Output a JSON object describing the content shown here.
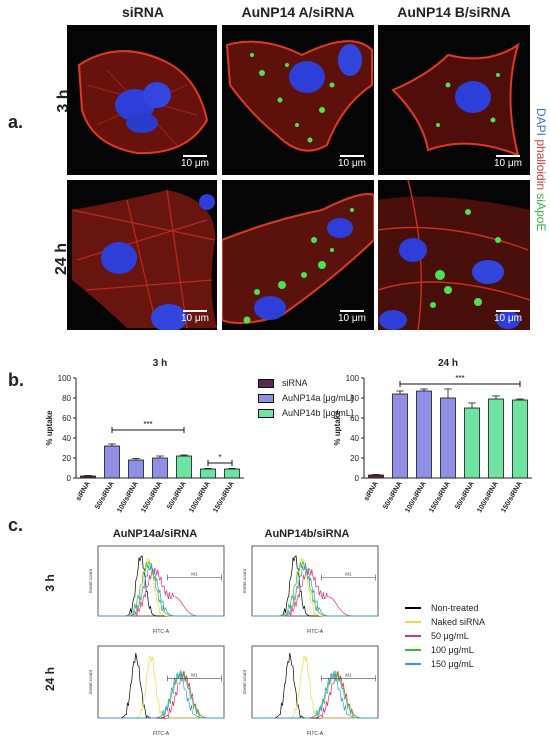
{
  "panel_a": {
    "letter": "a.",
    "column_titles": [
      "siRNA",
      "AuNP14 A/siRNA",
      "AuNP14 B/siRNA"
    ],
    "row_labels": [
      "3 h",
      "24 h"
    ],
    "scale_bar": "10 μm",
    "stain_legend": [
      {
        "text": "DAPI",
        "color": "#3a6fd6"
      },
      {
        "text": " phalloidin",
        "color": "#d53a2a"
      },
      {
        "text": " siApoE",
        "color": "#3cb23c"
      }
    ]
  },
  "panel_b": {
    "letter": "b.",
    "legend": [
      {
        "text": "siRNA",
        "color": "#5b2a4a"
      },
      {
        "text": "AuNP14a [μg/mL]",
        "color": "#8f8fe6"
      },
      {
        "text": "AuNP14b [μg/mL]",
        "color": "#6fe3a0"
      }
    ]
  },
  "panel_c": {
    "letter": "c.",
    "column_titles": [
      "AuNP14a/siRNA",
      "AuNP14b/siRNA"
    ],
    "row_labels": [
      "3 h",
      "24 h"
    ],
    "x_axis_label": "FITC-A",
    "y_axis_label": "Event count",
    "gate_label": "M1",
    "legend": [
      {
        "text": "Non-treated",
        "color": "#000000"
      },
      {
        "text": "Naked siRNA",
        "color": "#f2d84a"
      },
      {
        "text": "50 μg/mL",
        "color": "#e0306a"
      },
      {
        "text": "100 μg/mL",
        "color": "#39b83a"
      },
      {
        "text": "150 μg/mL",
        "color": "#2f9be0"
      }
    ]
  },
  "chart_data": [
    {
      "type": "bar",
      "title": "3 h",
      "ylabel": "% uptake",
      "ylim": [
        0,
        100
      ],
      "yticks": [
        0,
        20,
        40,
        60,
        80,
        100
      ],
      "categories": [
        "siRNA",
        "50/siRNA",
        "100/siRNA",
        "150/siRNA",
        "50/siRNA",
        "100/siRNA",
        "150/siRNA"
      ],
      "values": [
        2,
        32,
        18,
        20,
        22,
        9,
        9
      ],
      "errors": [
        0.5,
        2,
        1.5,
        2,
        1,
        0.5,
        0.5
      ],
      "groups": [
        "siRNA",
        "AuNP14a",
        "AuNP14a",
        "AuNP14a",
        "AuNP14b",
        "AuNP14b",
        "AuNP14b"
      ],
      "significance": [
        {
          "label": "***",
          "from": 1,
          "to": 4,
          "y": 48
        },
        {
          "label": "*",
          "from": 5,
          "to": 6,
          "y": 15
        }
      ]
    },
    {
      "type": "bar",
      "title": "24 h",
      "ylabel": "% uptake",
      "ylim": [
        0,
        100
      ],
      "yticks": [
        0,
        20,
        40,
        60,
        80,
        100
      ],
      "categories": [
        "siRNA",
        "50/siRNA",
        "100/siRNA",
        "150/siRNA",
        "50/siRNA",
        "100/siRNA",
        "150/siRNA"
      ],
      "values": [
        3,
        84,
        87,
        80,
        70,
        79,
        78
      ],
      "errors": [
        0.5,
        3,
        2,
        9,
        5,
        3,
        1
      ],
      "groups": [
        "siRNA",
        "AuNP14a",
        "AuNP14a",
        "AuNP14a",
        "AuNP14b",
        "AuNP14b",
        "AuNP14b"
      ],
      "significance": [
        {
          "label": "***",
          "from": 1,
          "to": 6,
          "y": 94
        }
      ]
    }
  ]
}
